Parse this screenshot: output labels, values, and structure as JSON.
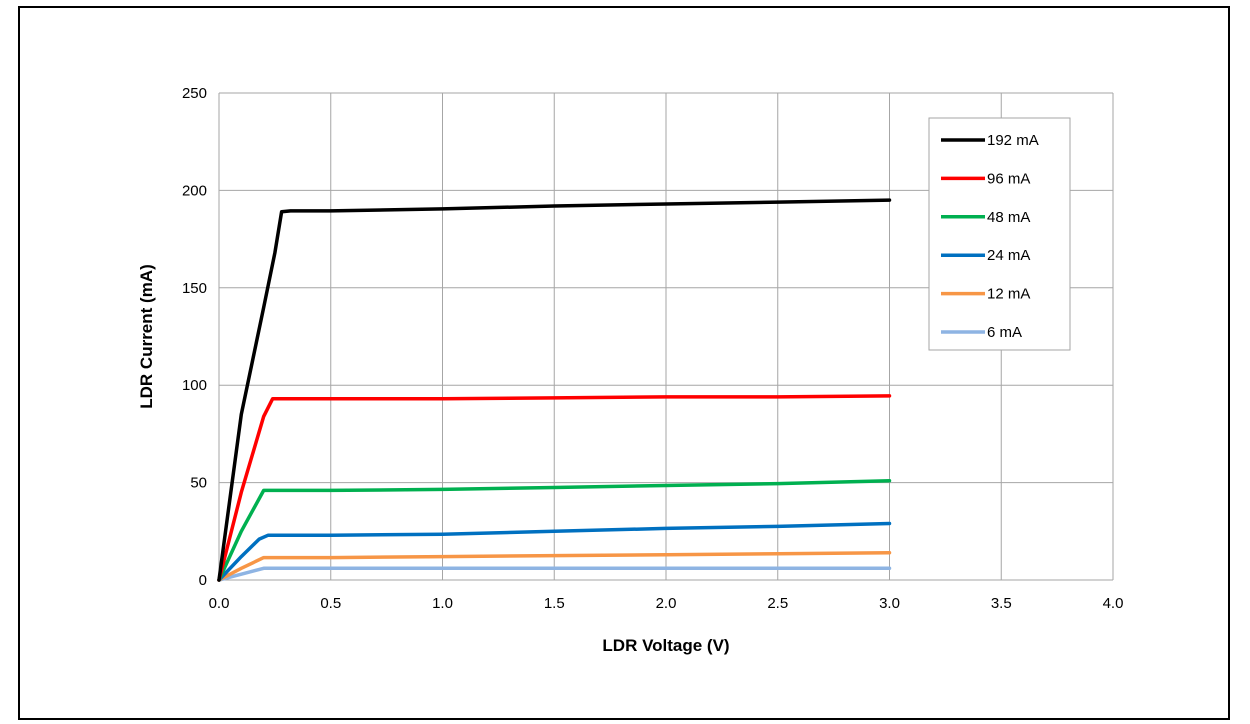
{
  "chart_data": {
    "type": "line",
    "title": "",
    "xlabel": "LDR Voltage (V)",
    "ylabel": "LDR Current (mA)",
    "xlim": [
      0,
      4
    ],
    "ylim": [
      0,
      250
    ],
    "xticks": [
      0.0,
      0.5,
      1.0,
      1.5,
      2.0,
      2.5,
      3.0,
      3.5,
      4.0
    ],
    "xtick_labels": [
      "0.0",
      "0.5",
      "1.0",
      "1.5",
      "2.0",
      "2.5",
      "3.0",
      "3.5",
      "4.0"
    ],
    "yticks": [
      0,
      50,
      100,
      150,
      200,
      250
    ],
    "ytick_labels": [
      "0",
      "50",
      "100",
      "150",
      "200",
      "250"
    ],
    "grid": true,
    "legend_position": "top-right",
    "series": [
      {
        "name": "192 mA",
        "color": "#000000",
        "x": [
          0,
          0.1,
          0.2,
          0.25,
          0.28,
          0.32,
          0.5,
          1.0,
          1.5,
          2.0,
          2.5,
          3.0
        ],
        "y": [
          0,
          85,
          140,
          168,
          189,
          189.5,
          189.5,
          190.5,
          192,
          193,
          194,
          195
        ]
      },
      {
        "name": "96 mA",
        "color": "#ff0000",
        "x": [
          0,
          0.1,
          0.2,
          0.24,
          0.5,
          1.0,
          1.5,
          2.0,
          2.5,
          3.0
        ],
        "y": [
          0,
          45,
          84,
          93,
          93,
          93,
          93.5,
          94,
          94,
          94.5
        ]
      },
      {
        "name": "48 mA",
        "color": "#00b050",
        "x": [
          0,
          0.1,
          0.2,
          0.5,
          1.0,
          1.5,
          2.0,
          2.5,
          3.0
        ],
        "y": [
          0,
          25,
          46,
          46,
          46.5,
          47.5,
          48.5,
          49.5,
          51
        ]
      },
      {
        "name": "24 mA",
        "color": "#0070c0",
        "x": [
          0,
          0.1,
          0.18,
          0.22,
          0.5,
          1.0,
          1.5,
          2.0,
          2.5,
          3.0
        ],
        "y": [
          0,
          12,
          21,
          23,
          23,
          23.5,
          25,
          26.5,
          27.5,
          29
        ]
      },
      {
        "name": "12 mA",
        "color": "#f79646",
        "x": [
          0,
          0.1,
          0.2,
          0.5,
          1.0,
          1.5,
          2.0,
          2.5,
          3.0
        ],
        "y": [
          0,
          6,
          11.5,
          11.5,
          12,
          12.5,
          13,
          13.5,
          14
        ]
      },
      {
        "name": "6 mA",
        "color": "#8eb4e3",
        "x": [
          0,
          0.1,
          0.2,
          0.5,
          1.0,
          1.5,
          2.0,
          2.5,
          3.0
        ],
        "y": [
          0,
          3,
          6,
          6,
          6,
          6,
          6,
          6,
          6
        ]
      }
    ]
  }
}
